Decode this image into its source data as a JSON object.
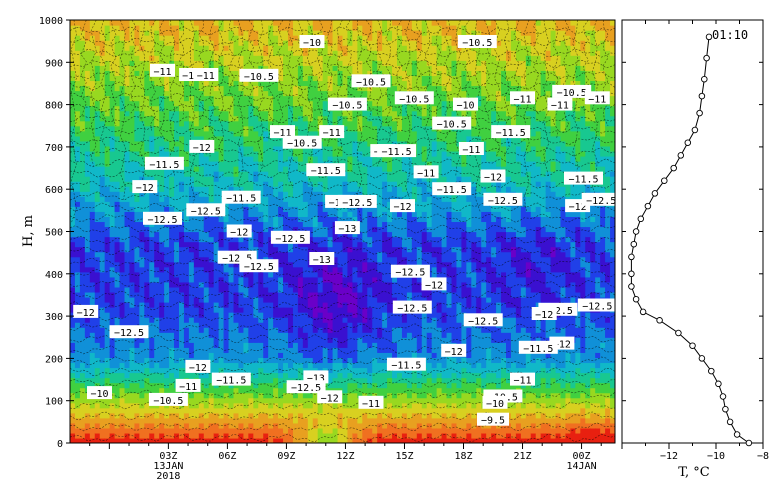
{
  "chart_data": [
    {
      "type": "heatmap",
      "ylabel": "H, m",
      "ylim": [
        0,
        1000
      ],
      "yticks": [
        "0",
        "100",
        "200",
        "300",
        "400",
        "500",
        "600",
        "700",
        "800",
        "900",
        "1000"
      ],
      "xlim_hours": [
        -2,
        25.7
      ],
      "xticks": [
        {
          "h": 3,
          "label": "03Z",
          "sub1": "13JAN",
          "sub2": "2018"
        },
        {
          "h": 6,
          "label": "06Z",
          "sub1": "",
          "sub2": ""
        },
        {
          "h": 9,
          "label": "09Z",
          "sub1": "",
          "sub2": ""
        },
        {
          "h": 12,
          "label": "12Z",
          "sub1": "",
          "sub2": ""
        },
        {
          "h": 15,
          "label": "15Z",
          "sub1": "",
          "sub2": ""
        },
        {
          "h": 18,
          "label": "18Z",
          "sub1": "",
          "sub2": ""
        },
        {
          "h": 21,
          "label": "21Z",
          "sub1": "",
          "sub2": ""
        },
        {
          "h": 24,
          "label": "00Z",
          "sub1": "14JAN",
          "sub2": ""
        }
      ],
      "contour_levels": [
        -13.5,
        -13,
        -12.5,
        -12,
        -11.5,
        -11,
        -10.5,
        -10,
        -9.5,
        -9,
        -8.5,
        -8
      ],
      "level_colors": [
        "#6a00c8",
        "#3a10d0",
        "#2040e8",
        "#1090d8",
        "#10b8c8",
        "#18c890",
        "#40d040",
        "#98d820",
        "#d8d020",
        "#e8a020",
        "#f07020",
        "#e82010"
      ],
      "contour_labels": [
        {
          "t": "-10",
          "h": 10.3,
          "z": 948
        },
        {
          "t": "-10.5",
          "h": 18.7,
          "z": 948
        },
        {
          "t": "-11",
          "h": 2.7,
          "z": 880
        },
        {
          "t": "-1",
          "h": 4.0,
          "z": 870
        },
        {
          "t": "-11",
          "h": 4.9,
          "z": 870
        },
        {
          "t": "-10.5",
          "h": 7.6,
          "z": 868
        },
        {
          "t": "-10.5",
          "h": 13.3,
          "z": 855
        },
        {
          "t": "-10.5",
          "h": 15.5,
          "z": 815
        },
        {
          "t": "-10.5",
          "h": 12.1,
          "z": 800
        },
        {
          "t": "-10",
          "h": 18.1,
          "z": 800
        },
        {
          "t": "-11",
          "h": 21.0,
          "z": 815
        },
        {
          "t": "-11",
          "h": 22.9,
          "z": 800
        },
        {
          "t": "-10.5",
          "h": 23.5,
          "z": 830
        },
        {
          "t": "-11",
          "h": 24.8,
          "z": 815
        },
        {
          "t": "-10.5",
          "h": 17.4,
          "z": 755
        },
        {
          "t": "-11.5",
          "h": 20.4,
          "z": 735
        },
        {
          "t": "-11",
          "h": 8.8,
          "z": 735
        },
        {
          "t": "-11",
          "h": 11.3,
          "z": 735
        },
        {
          "t": "-10.5",
          "h": 9.8,
          "z": 710
        },
        {
          "t": "-12",
          "h": 4.7,
          "z": 700
        },
        {
          "t": "-11",
          "h": 13.9,
          "z": 690
        },
        {
          "t": "-11.5",
          "h": 14.6,
          "z": 690
        },
        {
          "t": "-11",
          "h": 18.4,
          "z": 695
        },
        {
          "t": "-11.5",
          "h": 2.8,
          "z": 660
        },
        {
          "t": "-11.5",
          "h": 11.0,
          "z": 645
        },
        {
          "t": "-11",
          "h": 16.1,
          "z": 640
        },
        {
          "t": "-12",
          "h": 19.5,
          "z": 630
        },
        {
          "t": "-11.5",
          "h": 24.1,
          "z": 625
        },
        {
          "t": "-12",
          "h": 1.8,
          "z": 605
        },
        {
          "t": "-11.5",
          "h": 17.4,
          "z": 600
        },
        {
          "t": "-11.5",
          "h": 6.7,
          "z": 580
        },
        {
          "t": "-12",
          "h": 11.6,
          "z": 570
        },
        {
          "t": "-12.5",
          "h": 12.6,
          "z": 570
        },
        {
          "t": "-12",
          "h": 14.9,
          "z": 560
        },
        {
          "t": "-12.5",
          "h": 20.0,
          "z": 575
        },
        {
          "t": "-12",
          "h": 23.8,
          "z": 560
        },
        {
          "t": "-12.5",
          "h": 25.0,
          "z": 575
        },
        {
          "t": "-12.5",
          "h": 4.9,
          "z": 550
        },
        {
          "t": "-12.5",
          "h": 2.7,
          "z": 530
        },
        {
          "t": "-13",
          "h": 12.1,
          "z": 508
        },
        {
          "t": "-12",
          "h": 6.6,
          "z": 500
        },
        {
          "t": "-12.5",
          "h": 9.2,
          "z": 485
        },
        {
          "t": "-12.5",
          "h": 6.5,
          "z": 438
        },
        {
          "t": "-12.5",
          "h": 7.6,
          "z": 418
        },
        {
          "t": "-13",
          "h": 10.8,
          "z": 435
        },
        {
          "t": "-12.5",
          "h": 15.3,
          "z": 405
        },
        {
          "t": "-12",
          "h": 16.5,
          "z": 375
        },
        {
          "t": "-12",
          "h": -1.2,
          "z": 310
        },
        {
          "t": "-12.5",
          "h": 15.4,
          "z": 320
        },
        {
          "t": "-12.5",
          "h": 22.8,
          "z": 315
        },
        {
          "t": "-12.5",
          "h": 24.8,
          "z": 325
        },
        {
          "t": "-12",
          "h": 22.1,
          "z": 305
        },
        {
          "t": "-12.5",
          "h": 19.0,
          "z": 290
        },
        {
          "t": "-12.5",
          "h": 1.0,
          "z": 262
        },
        {
          "t": "-12",
          "h": 23.0,
          "z": 235
        },
        {
          "t": "-11.5",
          "h": 21.8,
          "z": 225
        },
        {
          "t": "-12",
          "h": 17.5,
          "z": 218
        },
        {
          "t": "-12",
          "h": 4.5,
          "z": 180
        },
        {
          "t": "-11.5",
          "h": 15.1,
          "z": 185
        },
        {
          "t": "-11.5",
          "h": 6.2,
          "z": 150
        },
        {
          "t": "-13",
          "h": 10.5,
          "z": 155
        },
        {
          "t": "-11",
          "h": 4.0,
          "z": 135
        },
        {
          "t": "-12.5",
          "h": 10.0,
          "z": 132
        },
        {
          "t": "-11",
          "h": 21.0,
          "z": 150
        },
        {
          "t": "-10",
          "h": -0.5,
          "z": 118
        },
        {
          "t": "-10.5",
          "h": 3.0,
          "z": 102
        },
        {
          "t": "-12",
          "h": 11.2,
          "z": 108
        },
        {
          "t": "-11",
          "h": 13.3,
          "z": 95
        },
        {
          "t": "-10.5",
          "h": 20.0,
          "z": 110
        },
        {
          "t": "-10",
          "h": 19.6,
          "z": 95
        },
        {
          "t": "-9.5",
          "h": 19.5,
          "z": 55
        }
      ]
    },
    {
      "type": "line",
      "xlabel": "T, °C",
      "xlim": [
        -14,
        -8
      ],
      "xticks": [
        "-12",
        "-10",
        "-8"
      ],
      "ylim": [
        0,
        1000
      ],
      "time_label": "01:10",
      "x": [
        -8.6,
        -9.1,
        -9.4,
        -9.6,
        -9.7,
        -9.9,
        -10.2,
        -10.6,
        -11.0,
        -11.6,
        -12.4,
        -13.1,
        -13.4,
        -13.6,
        -13.6,
        -13.6,
        -13.5,
        -13.4,
        -13.2,
        -12.9,
        -12.6,
        -12.2,
        -11.8,
        -11.5,
        -11.2,
        -10.9,
        -10.7,
        -10.6,
        -10.5,
        -10.4,
        -10.3
      ],
      "y": [
        0,
        20,
        50,
        80,
        110,
        140,
        170,
        200,
        230,
        260,
        290,
        310,
        340,
        370,
        400,
        440,
        470,
        500,
        530,
        560,
        590,
        620,
        650,
        680,
        710,
        740,
        780,
        820,
        860,
        910,
        960
      ]
    }
  ]
}
